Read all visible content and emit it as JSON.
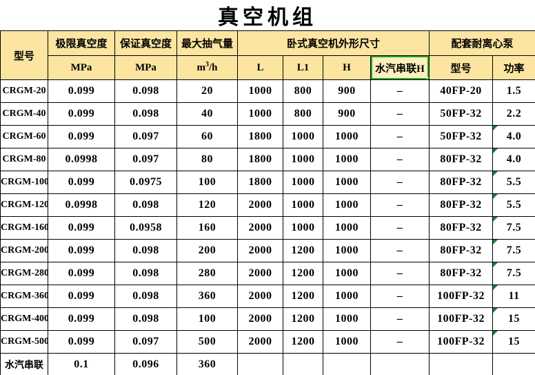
{
  "title": "真空机组",
  "colors": {
    "header_bg": "#FBE5A0",
    "selected_cell_bg": "#FCF0BE",
    "selection_green": "#26A32D",
    "triangle_green": "#1F7D33",
    "grid_line": "#000000",
    "text": "#000000"
  },
  "header": {
    "col_model": "型号",
    "col_ultimate_vacuum": "极限真空度",
    "col_guaranteed_vacuum": "保证真空度",
    "col_max_capacity": "最大抽气量",
    "unit_ultimate": "MPa",
    "unit_guaranteed": "MPa",
    "unit_capacity_base": "m",
    "unit_capacity_sup": "3",
    "unit_capacity_rest": "/h",
    "group_dimensions": "卧式真空机外形尺寸",
    "group_pump": "配套耐离心泵",
    "sub_l": "L",
    "sub_l1": "L1",
    "sub_h": "H",
    "sub_steam_series_h": "水汽串联H",
    "sub_pump_model": "型号",
    "sub_pump_power": "功率"
  },
  "table": {
    "rows": [
      {
        "cells": [
          "CRGM-20",
          "0.099",
          "0.098",
          "20",
          "1000",
          "800",
          "900",
          "–",
          "40FP-20",
          "1.5"
        ],
        "flag": false
      },
      {
        "cells": [
          "CRGM-40",
          "0.099",
          "0.098",
          "40",
          "1000",
          "800",
          "900",
          "–",
          "50FP-32",
          "2.2"
        ],
        "flag": false
      },
      {
        "cells": [
          "CRGM-60",
          "0.099",
          "0.097",
          "60",
          "1800",
          "1000",
          "1000",
          "–",
          "50FP-32",
          "4.0"
        ],
        "flag": true
      },
      {
        "cells": [
          "CRGM-80",
          "0.0998",
          "0.097",
          "80",
          "1800",
          "1000",
          "1000",
          "–",
          "80FP-32",
          "4.0"
        ],
        "flag": true
      },
      {
        "cells": [
          "CRGM-100",
          "0.099",
          "0.0975",
          "100",
          "1800",
          "1000",
          "1000",
          "–",
          "80FP-32",
          "5.5"
        ],
        "flag": true
      },
      {
        "cells": [
          "CRGM-120",
          "0.0998",
          "0.098",
          "120",
          "2000",
          "1000",
          "1000",
          "–",
          "80FP-32",
          "5.5"
        ],
        "flag": true
      },
      {
        "cells": [
          "CRGM-160",
          "0.099",
          "0.0958",
          "160",
          "2000",
          "1000",
          "1000",
          "–",
          "80FP-32",
          "7.5"
        ],
        "flag": true
      },
      {
        "cells": [
          "CRGM-200",
          "0.099",
          "0.098",
          "200",
          "2000",
          "1200",
          "1000",
          "–",
          "80FP-32",
          "7.5"
        ],
        "flag": true
      },
      {
        "cells": [
          "CRGM-280",
          "0.099",
          "0.098",
          "280",
          "2000",
          "1200",
          "1000",
          "–",
          "80FP-32",
          "7.5"
        ],
        "flag": true
      },
      {
        "cells": [
          "CRGM-360",
          "0.099",
          "0.098",
          "360",
          "2000",
          "1200",
          "1000",
          "–",
          "100FP-32",
          "11"
        ],
        "flag": true
      },
      {
        "cells": [
          "CRGM-400",
          "0.099",
          "0.098",
          "100",
          "2000",
          "1200",
          "1000",
          "–",
          "100FP-32",
          "15"
        ],
        "flag": true
      },
      {
        "cells": [
          "CRGM-500",
          "0.099",
          "0.097",
          "500",
          "2000",
          "1200",
          "1000",
          "–",
          "100FP-32",
          "15"
        ],
        "flag": true
      },
      {
        "cells": [
          "水汽串联",
          "0.1",
          "0.096",
          "360",
          "",
          "",
          "",
          "",
          "",
          ""
        ],
        "flag": false
      }
    ]
  }
}
